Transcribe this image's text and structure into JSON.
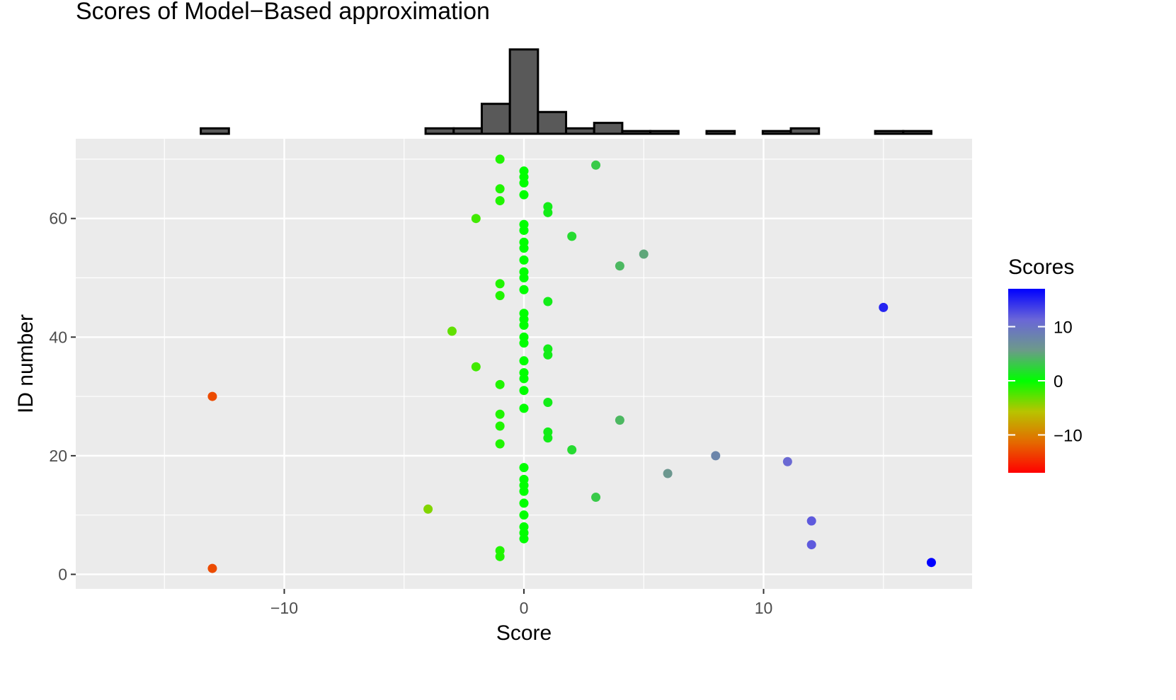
{
  "chart_data": [
    {
      "type": "histogram",
      "bins": [
        -17,
        -15.8276,
        -14.6552,
        -13.4828,
        -12.3103,
        -11.1379,
        -9.9655,
        -8.7931,
        -7.6207,
        -6.4483,
        -5.2759,
        -4.1034,
        -2.931,
        -1.7586,
        -0.5862,
        0.5862,
        1.7586,
        2.931,
        4.1034,
        5.2759,
        6.4483,
        7.6207,
        8.7931,
        9.9655,
        11.1379,
        12.3103,
        13.4828,
        14.6552,
        15.8276,
        17
      ],
      "values": [
        0,
        0,
        0,
        2,
        0,
        0,
        0,
        0,
        0,
        0,
        0,
        2,
        2,
        11,
        31,
        8,
        2,
        4,
        1,
        1,
        0,
        1,
        0,
        1,
        2,
        0,
        0,
        1,
        1
      ],
      "color": "#595959",
      "xlim": [
        -18.7,
        18.7
      ],
      "ylim": [
        0,
        32
      ]
    },
    {
      "type": "scatter",
      "title": "Scores of Model−Based approximation",
      "x_label": "Score",
      "y_label": "ID number",
      "x": [
        -13,
        17,
        -1,
        -1,
        12,
        0,
        0,
        0,
        12,
        0,
        -4,
        0,
        3,
        0,
        0,
        0,
        6,
        0,
        11,
        8,
        2,
        -1,
        1,
        1,
        -1,
        4,
        -1,
        0,
        1,
        -13,
        0,
        -1,
        0,
        0,
        -2,
        0,
        1,
        1,
        0,
        0,
        -3,
        0,
        0,
        0,
        15,
        1,
        -1,
        0,
        -1,
        0,
        0,
        4,
        0,
        5,
        0,
        0,
        2,
        0,
        0,
        -2,
        1,
        1,
        -1,
        0,
        -1,
        0,
        0,
        0,
        3,
        -1
      ],
      "y": [
        1,
        2,
        3,
        4,
        5,
        6,
        7,
        8,
        9,
        10,
        11,
        12,
        13,
        14,
        15,
        16,
        17,
        18,
        19,
        20,
        21,
        22,
        23,
        24,
        25,
        26,
        27,
        28,
        29,
        30,
        31,
        32,
        33,
        34,
        35,
        36,
        37,
        38,
        39,
        40,
        41,
        42,
        43,
        44,
        45,
        46,
        47,
        48,
        49,
        50,
        51,
        52,
        53,
        54,
        55,
        56,
        57,
        58,
        59,
        60,
        61,
        62,
        63,
        64,
        65,
        66,
        67,
        68,
        69,
        70
      ],
      "xlim": [
        -18.7,
        18.7
      ],
      "ylim": [
        -2.45,
        73.45
      ],
      "xticks": [
        {
          "value": -10,
          "label": "−10"
        },
        0,
        10
      ],
      "yticks": [
        0,
        20,
        40,
        60
      ],
      "xminor": [
        -15,
        -5,
        5,
        15
      ],
      "yminor": [
        10,
        30,
        50,
        70
      ],
      "grid": true,
      "legend": {
        "title": "Scores",
        "position": "right",
        "limits": [
          -17,
          17
        ],
        "colors": [
          "#ff0000",
          "#e46a00",
          "#b8c400",
          "#00ff00",
          "#6c9a8a",
          "#6a66d8",
          "#0000ff"
        ],
        "ticks": [
          {
            "value": -10,
            "label": "−10"
          },
          0,
          10
        ]
      }
    }
  ]
}
